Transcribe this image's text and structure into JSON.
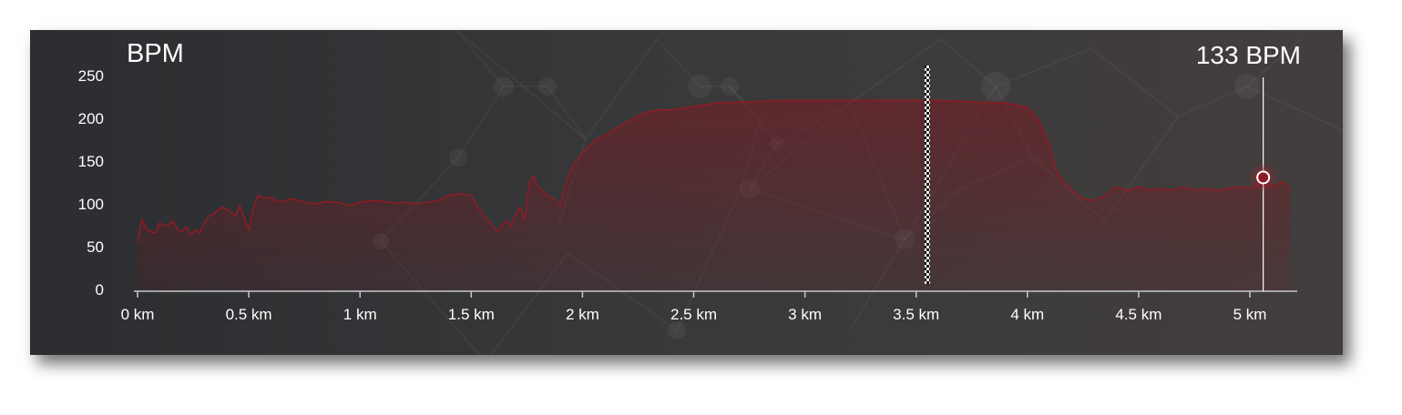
{
  "header": {
    "ylabel": "BPM",
    "readout": "133 BPM"
  },
  "colors": {
    "line": "#8c1c24",
    "fill": "#7a1a22",
    "axis": "#c8c8cc",
    "marker": "#ffffff"
  },
  "chart_data": {
    "type": "area",
    "xlabel": "",
    "ylabel": "BPM",
    "xlim": [
      0,
      5.2
    ],
    "ylim": [
      0,
      250
    ],
    "y_ticks": [
      "0",
      "50",
      "100",
      "150",
      "200",
      "250"
    ],
    "x_ticks": [
      "0 km",
      "0.5 km",
      "1 km",
      "1.5 km",
      "2 km",
      "2.5 km",
      "3 km",
      "3.5 km",
      "4 km",
      "4.5 km",
      "5 km"
    ],
    "grid": false,
    "series": [
      {
        "x": [
          0,
          0.02,
          0.04,
          0.06,
          0.08,
          0.1,
          0.12,
          0.14,
          0.16,
          0.18,
          0.2,
          0.22,
          0.24,
          0.26,
          0.28,
          0.3,
          0.32,
          0.34,
          0.36,
          0.38,
          0.4,
          0.42,
          0.44,
          0.46,
          0.48,
          0.5,
          0.52,
          0.54,
          0.56,
          0.58,
          0.6,
          0.62,
          0.64,
          0.66,
          0.7,
          0.75,
          0.8,
          0.85,
          0.9,
          0.95,
          1.0,
          1.05,
          1.1,
          1.15,
          1.2,
          1.25,
          1.3,
          1.35,
          1.4,
          1.45,
          1.5,
          1.55,
          1.58,
          1.6,
          1.62,
          1.64,
          1.66,
          1.68,
          1.7,
          1.72,
          1.74,
          1.76,
          1.78,
          1.8,
          1.82,
          1.84,
          1.86,
          1.88,
          1.9,
          1.93,
          1.96,
          2.0,
          2.05,
          2.1,
          2.15,
          2.2,
          2.25,
          2.3,
          2.35,
          2.4,
          2.5,
          2.6,
          2.7,
          2.8,
          2.9,
          3.0,
          3.1,
          3.2,
          3.3,
          3.4,
          3.5,
          3.6,
          3.7,
          3.8,
          3.9,
          4.0,
          4.05,
          4.1,
          4.13,
          4.16,
          4.18,
          4.2,
          4.25,
          4.3,
          4.35,
          4.4,
          4.42,
          4.45,
          4.5,
          4.55,
          4.6,
          4.65,
          4.7,
          4.75,
          4.8,
          4.85,
          4.9,
          4.95,
          5.0,
          5.05,
          5.08,
          5.1,
          5.15,
          5.18
        ],
        "values": [
          58,
          84,
          72,
          70,
          68,
          80,
          76,
          78,
          82,
          72,
          70,
          75,
          66,
          72,
          68,
          80,
          88,
          90,
          95,
          98,
          96,
          92,
          88,
          100,
          85,
          72,
          96,
          112,
          110,
          108,
          110,
          106,
          104,
          106,
          108,
          104,
          102,
          105,
          104,
          100,
          104,
          106,
          105,
          103,
          104,
          102,
          104,
          106,
          112,
          114,
          112,
          90,
          82,
          75,
          70,
          78,
          82,
          76,
          90,
          98,
          82,
          126,
          135,
          122,
          118,
          112,
          110,
          106,
          100,
          130,
          148,
          162,
          175,
          182,
          190,
          198,
          205,
          210,
          212,
          212,
          216,
          220,
          221,
          222,
          223,
          223,
          223,
          223,
          223,
          223,
          223,
          223,
          222,
          221,
          220,
          215,
          200,
          170,
          140,
          128,
          124,
          118,
          108,
          106,
          112,
          122,
          120,
          118,
          122,
          118,
          120,
          118,
          122,
          118,
          120,
          118,
          120,
          122,
          120,
          128,
          124,
          122,
          128,
          118
        ]
      }
    ],
    "cursor": {
      "x": 5.06,
      "value": 133,
      "label": "133 BPM"
    },
    "finish_marker_x": 3.55
  }
}
